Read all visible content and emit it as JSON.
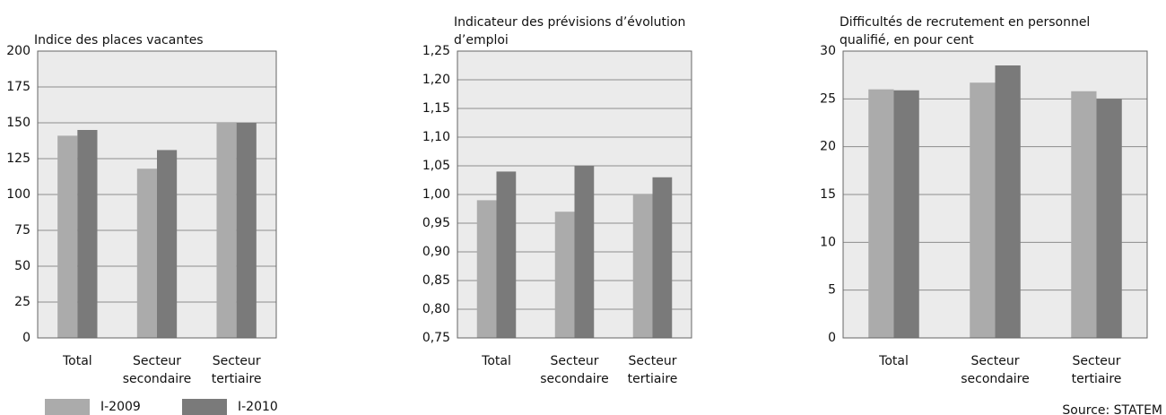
{
  "chart_data": [
    {
      "type": "bar",
      "title": "Indice des places vacantes",
      "categories": [
        "Total",
        "Secteur secondaire",
        "Secteur tertiaire"
      ],
      "series": [
        {
          "name": "I-2009",
          "color": "#ababab",
          "values": [
            141,
            118,
            150
          ]
        },
        {
          "name": "I-2010",
          "color": "#7a7a7a",
          "values": [
            145,
            131,
            150
          ]
        }
      ],
      "ylim": [
        0,
        200
      ],
      "yticks": [
        0,
        25,
        50,
        75,
        100,
        125,
        150,
        175,
        200
      ],
      "grid": true
    },
    {
      "type": "bar",
      "title": "Indicateur des prévisions d’évolution d’emploi",
      "categories": [
        "Total",
        "Secteur secondaire",
        "Secteur tertiaire"
      ],
      "series": [
        {
          "name": "I-2009",
          "color": "#ababab",
          "values": [
            0.99,
            0.97,
            1.0
          ]
        },
        {
          "name": "I-2010",
          "color": "#7a7a7a",
          "values": [
            1.04,
            1.05,
            1.03
          ]
        }
      ],
      "ylim": [
        0.75,
        1.25
      ],
      "yticks": [
        {
          "value": 0.75,
          "label": "0,75"
        },
        {
          "value": 0.8,
          "label": "0,80"
        },
        {
          "value": 0.85,
          "label": "0,85"
        },
        {
          "value": 0.9,
          "label": "0,90"
        },
        {
          "value": 0.95,
          "label": "0,95"
        },
        {
          "value": 1.0,
          "label": "1,00"
        },
        {
          "value": 1.05,
          "label": "1,05"
        },
        {
          "value": 1.1,
          "label": "1,10"
        },
        {
          "value": 1.15,
          "label": "1,15"
        },
        {
          "value": 1.2,
          "label": "1,20"
        },
        {
          "value": 1.25,
          "label": "1,25"
        }
      ],
      "grid": true
    },
    {
      "type": "bar",
      "title": "Difficultés de recrutement en personnel qualifié, en pour cent",
      "categories": [
        "Total",
        "Secteur secondaire",
        "Secteur tertiaire"
      ],
      "series": [
        {
          "name": "I-2009",
          "color": "#ababab",
          "values": [
            26,
            26.7,
            25.8
          ]
        },
        {
          "name": "I-2010",
          "color": "#7a7a7a",
          "values": [
            25.9,
            28.5,
            25.0
          ]
        }
      ],
      "ylim": [
        0,
        30
      ],
      "yticks": [
        0,
        5,
        10,
        15,
        20,
        25,
        30
      ],
      "grid": true
    }
  ],
  "source": "Source: STATEM"
}
